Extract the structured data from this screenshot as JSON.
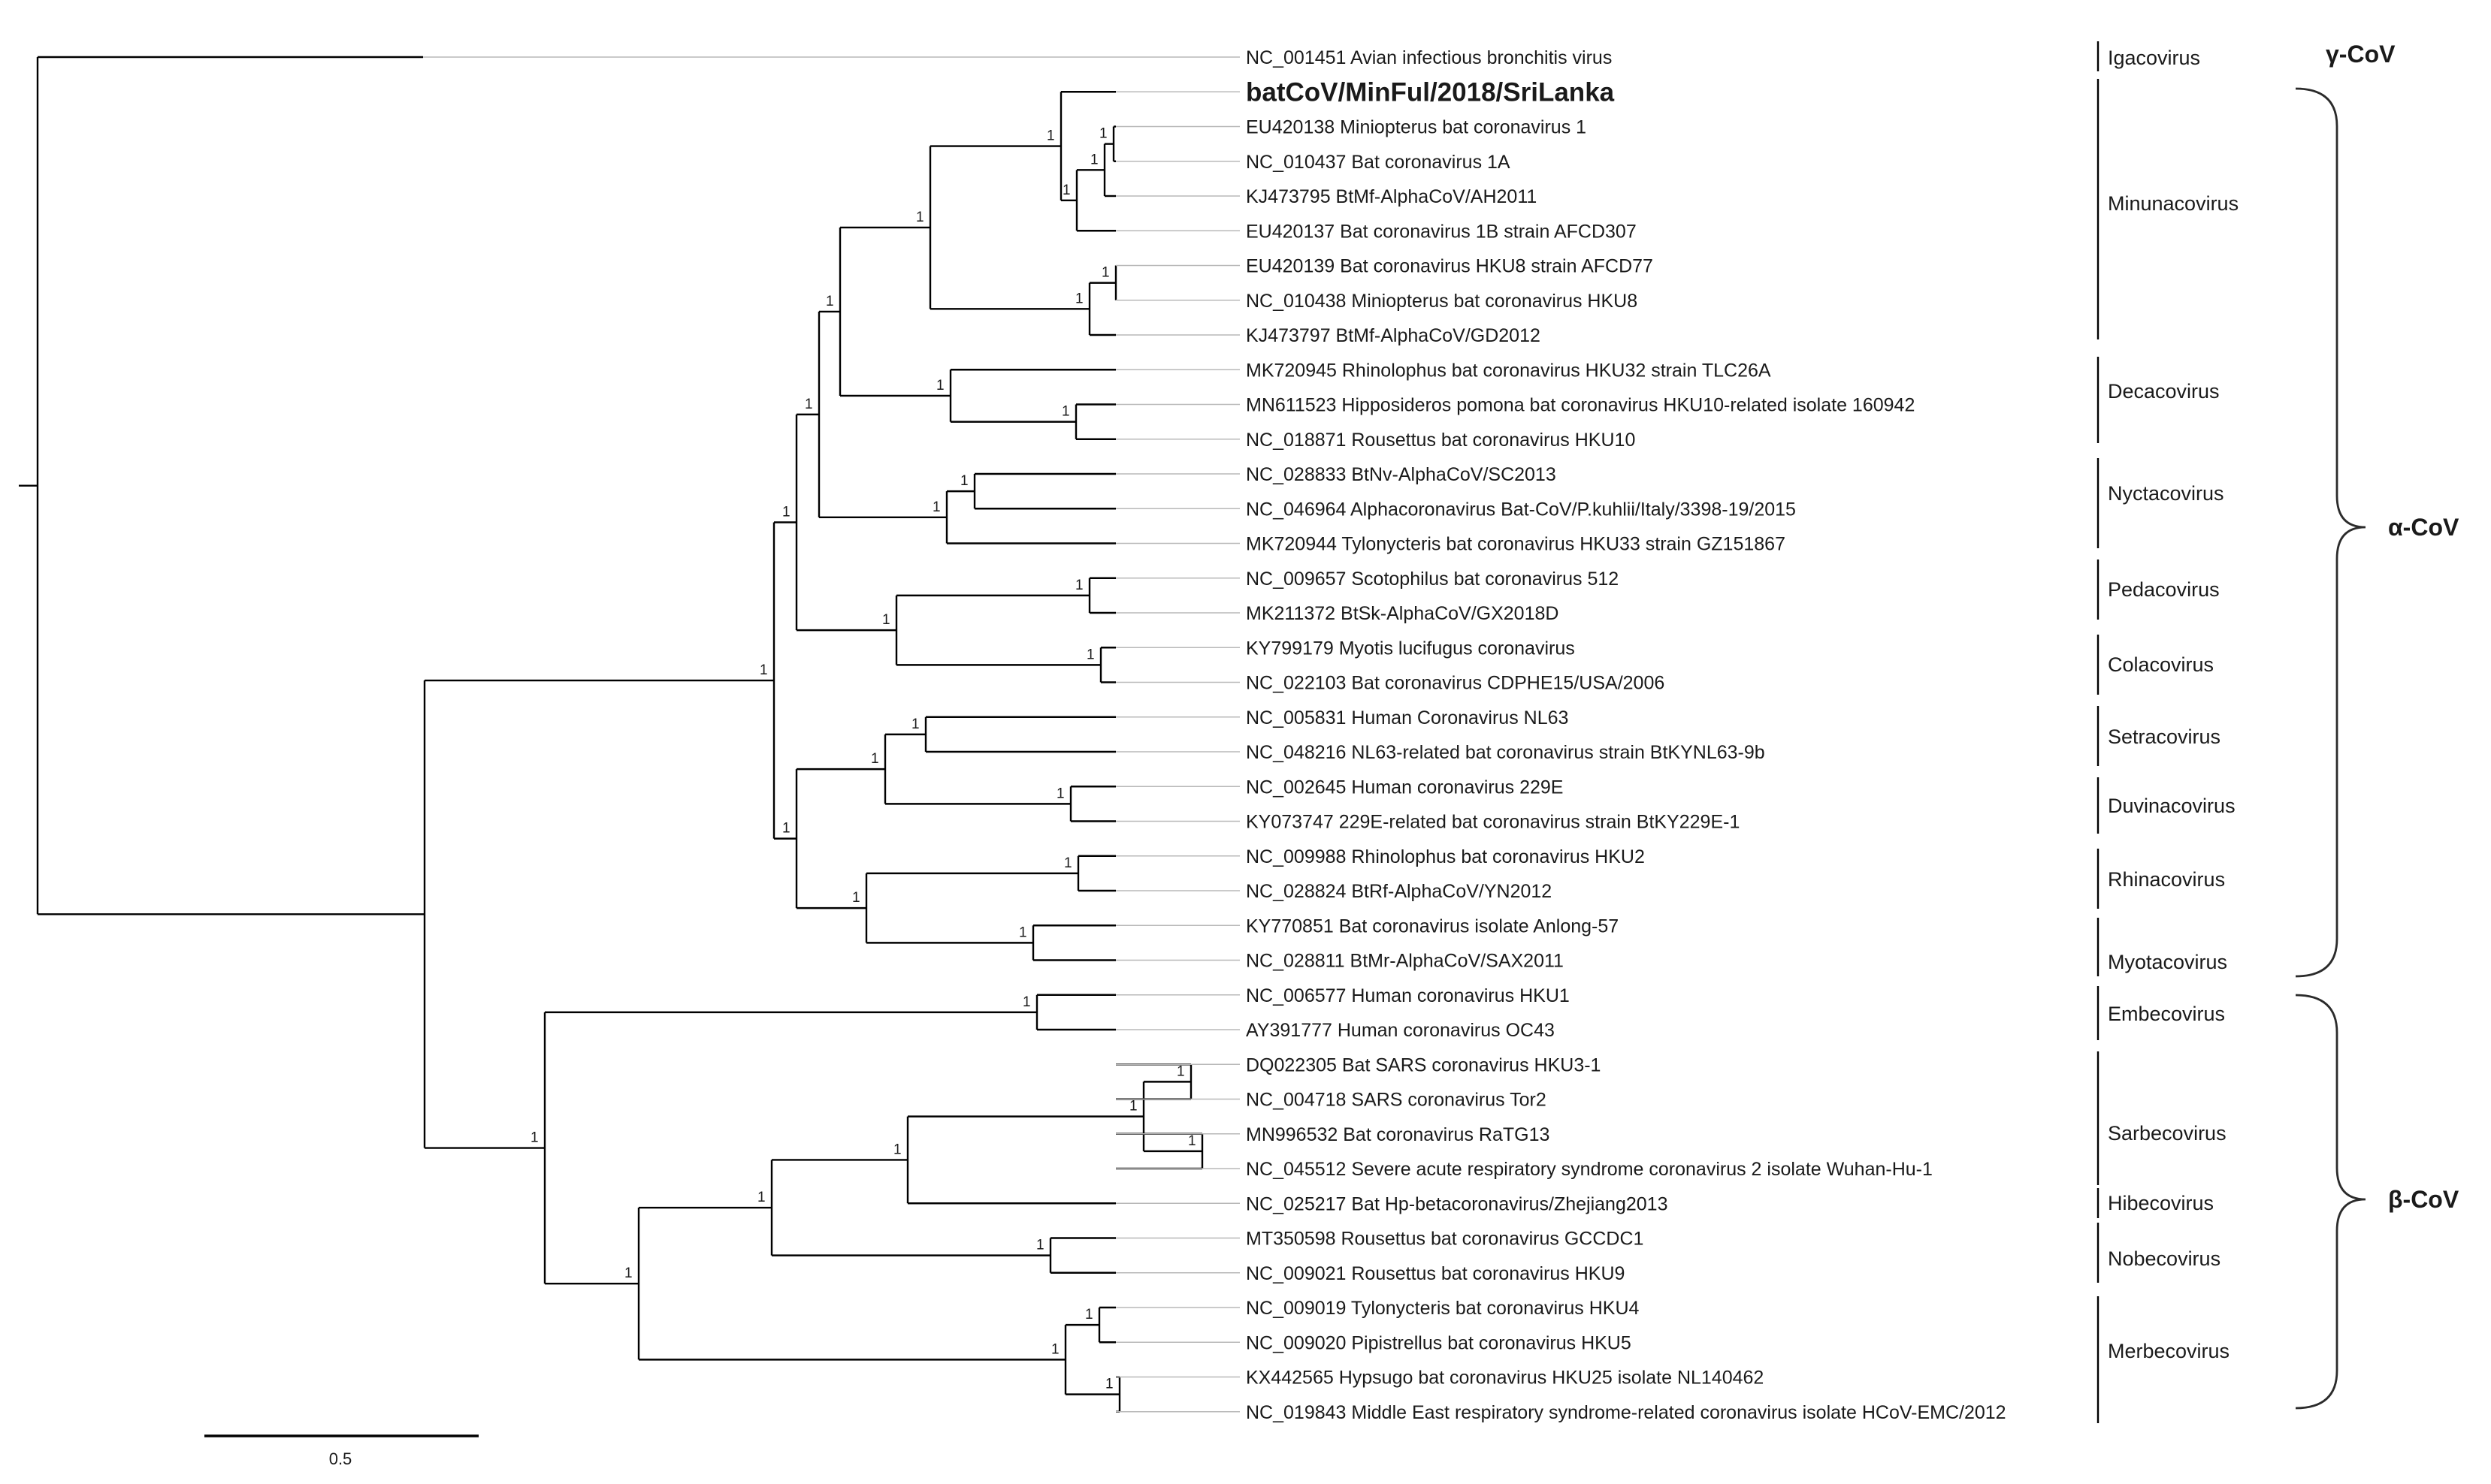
{
  "figure": {
    "scale_bar": {
      "label": "0.5",
      "value": 0.5
    },
    "taxa": [
      "NC_001451 Avian infectious bronchitis virus",
      "batCoV/MinFul/2018/SriLanka",
      "EU420138 Miniopterus bat coronavirus 1",
      "NC_010437 Bat coronavirus 1A",
      "KJ473795 BtMf-AlphaCoV/AH2011",
      "EU420137 Bat coronavirus 1B strain AFCD307",
      "EU420139 Bat coronavirus HKU8 strain AFCD77",
      "NC_010438 Miniopterus bat coronavirus HKU8",
      "KJ473797 BtMf-AlphaCoV/GD2012",
      "MK720945 Rhinolophus bat coronavirus HKU32 strain TLC26A",
      "MN611523 Hipposideros pomona bat coronavirus HKU10-related isolate 160942",
      "NC_018871 Rousettus bat coronavirus HKU10",
      "NC_028833 BtNv-AlphaCoV/SC2013",
      "NC_046964 Alphacoronavirus Bat-CoV/P.kuhlii/Italy/3398-19/2015",
      "MK720944 Tylonycteris bat coronavirus HKU33 strain GZ151867",
      "NC_009657 Scotophilus bat coronavirus 512",
      "MK211372 BtSk-AlphaCoV/GX2018D",
      "KY799179 Myotis lucifugus coronavirus",
      "NC_022103 Bat coronavirus CDPHE15/USA/2006",
      "NC_005831 Human Coronavirus NL63",
      "NC_048216 NL63-related bat coronavirus strain BtKYNL63-9b",
      "NC_002645 Human coronavirus 229E",
      "KY073747 229E-related bat coronavirus strain BtKY229E-1",
      "NC_009988 Rhinolophus bat coronavirus HKU2",
      "NC_028824 BtRf-AlphaCoV/YN2012",
      "KY770851 Bat coronavirus isolate Anlong-57",
      "NC_028811 BtMr-AlphaCoV/SAX2011",
      "NC_006577 Human coronavirus HKU1",
      "AY391777 Human coronavirus OC43",
      "DQ022305 Bat SARS coronavirus HKU3-1",
      "NC_004718 SARS coronavirus Tor2",
      "MN996532 Bat coronavirus RaTG13",
      "NC_045512 Severe acute respiratory syndrome coronavirus 2 isolate Wuhan-Hu-1",
      "NC_025217 Bat Hp-betacoronavirus/Zhejiang2013",
      "MT350598 Rousettus bat coronavirus GCCDC1",
      "NC_009021 Rousettus bat coronavirus HKU9",
      "NC_009019 Tylonycteris bat coronavirus HKU4",
      "NC_009020 Pipistrellus bat coronavirus HKU5",
      "KX442565 Hypsugo bat coronavirus HKU25 isolate NL140462",
      "NC_019843 Middle East respiratory syndrome-related coronavirus isolate HCoV-EMC/2012"
    ],
    "highlighted_taxon": "batCoV/MinFul/2018/SriLanka",
    "support_value": "1",
    "subgenera": [
      "Igacovirus",
      "Minunacovirus",
      "Decacovirus",
      "Nyctacovirus",
      "Pedacovirus",
      "Colacovirus",
      "Setracovirus",
      "Duvinacovirus",
      "Rhinacovirus",
      "Myotacovirus",
      "Embecovirus",
      "Sarbecovirus",
      "Hibecovirus",
      "Nobecovirus",
      "Merbecovirus"
    ],
    "genera": [
      "γ-CoV",
      "α-CoV",
      "β-CoV"
    ]
  }
}
